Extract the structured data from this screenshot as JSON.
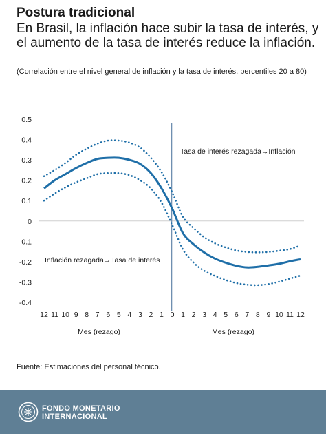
{
  "title": "Postura tradicional",
  "subtitle": "En Brasil, la inflación hace subir la tasa de interés, y el aumento de la tasa de interés reduce la inflación.",
  "note": "(Correlación entre el nivel general de inflación y la tasa de interés, percentiles 20 a 80)",
  "source": "Fuente: Estimaciones del personal técnico.",
  "footer": {
    "org_line1": "FONDO MONETARIO",
    "org_line2": "INTERNACIONAL"
  },
  "colors": {
    "line": "#1f6fa8",
    "footer": "#5f7f95",
    "divider": "#6f8fb0"
  },
  "chart_data": {
    "type": "line",
    "ylim": [
      -0.4,
      0.5
    ],
    "yticks": [
      "0.5",
      "0.4",
      "0.3",
      "0.2",
      "0.1",
      "0",
      "-0.1",
      "-0.2",
      "-0.3",
      "-0.4"
    ],
    "categories": [
      "12",
      "11",
      "10",
      "9",
      "8",
      "7",
      "6",
      "5",
      "4",
      "3",
      "2",
      "1",
      "0",
      "1",
      "2",
      "3",
      "4",
      "5",
      "6",
      "7",
      "8",
      "9",
      "10",
      "11",
      "12"
    ],
    "xlabel_left": "Mes (rezago)",
    "xlabel_right": "Mes (rezago)",
    "annotation_right": "Tasa de interés rezagada→Inflación",
    "annotation_left": "Inflación rezagada→Tasa de interés",
    "grid": false,
    "series": [
      {
        "style": "solid",
        "values": [
          0.16,
          0.2,
          0.23,
          0.26,
          0.285,
          0.305,
          0.31,
          0.31,
          0.3,
          0.28,
          0.235,
          0.16,
          0.06,
          -0.06,
          -0.115,
          -0.155,
          -0.185,
          -0.205,
          -0.22,
          -0.228,
          -0.225,
          -0.218,
          -0.21,
          -0.198,
          -0.188
        ]
      },
      {
        "style": "dotted",
        "values": [
          0.22,
          0.25,
          0.285,
          0.325,
          0.355,
          0.38,
          0.395,
          0.395,
          0.385,
          0.36,
          0.31,
          0.24,
          0.14,
          0.02,
          -0.035,
          -0.08,
          -0.11,
          -0.13,
          -0.145,
          -0.152,
          -0.154,
          -0.152,
          -0.146,
          -0.138,
          -0.12
        ]
      },
      {
        "style": "dotted",
        "values": [
          0.1,
          0.135,
          0.165,
          0.19,
          0.21,
          0.23,
          0.235,
          0.235,
          0.225,
          0.2,
          0.16,
          0.09,
          -0.02,
          -0.14,
          -0.205,
          -0.245,
          -0.27,
          -0.29,
          -0.305,
          -0.313,
          -0.315,
          -0.31,
          -0.298,
          -0.283,
          -0.268
        ]
      }
    ]
  }
}
